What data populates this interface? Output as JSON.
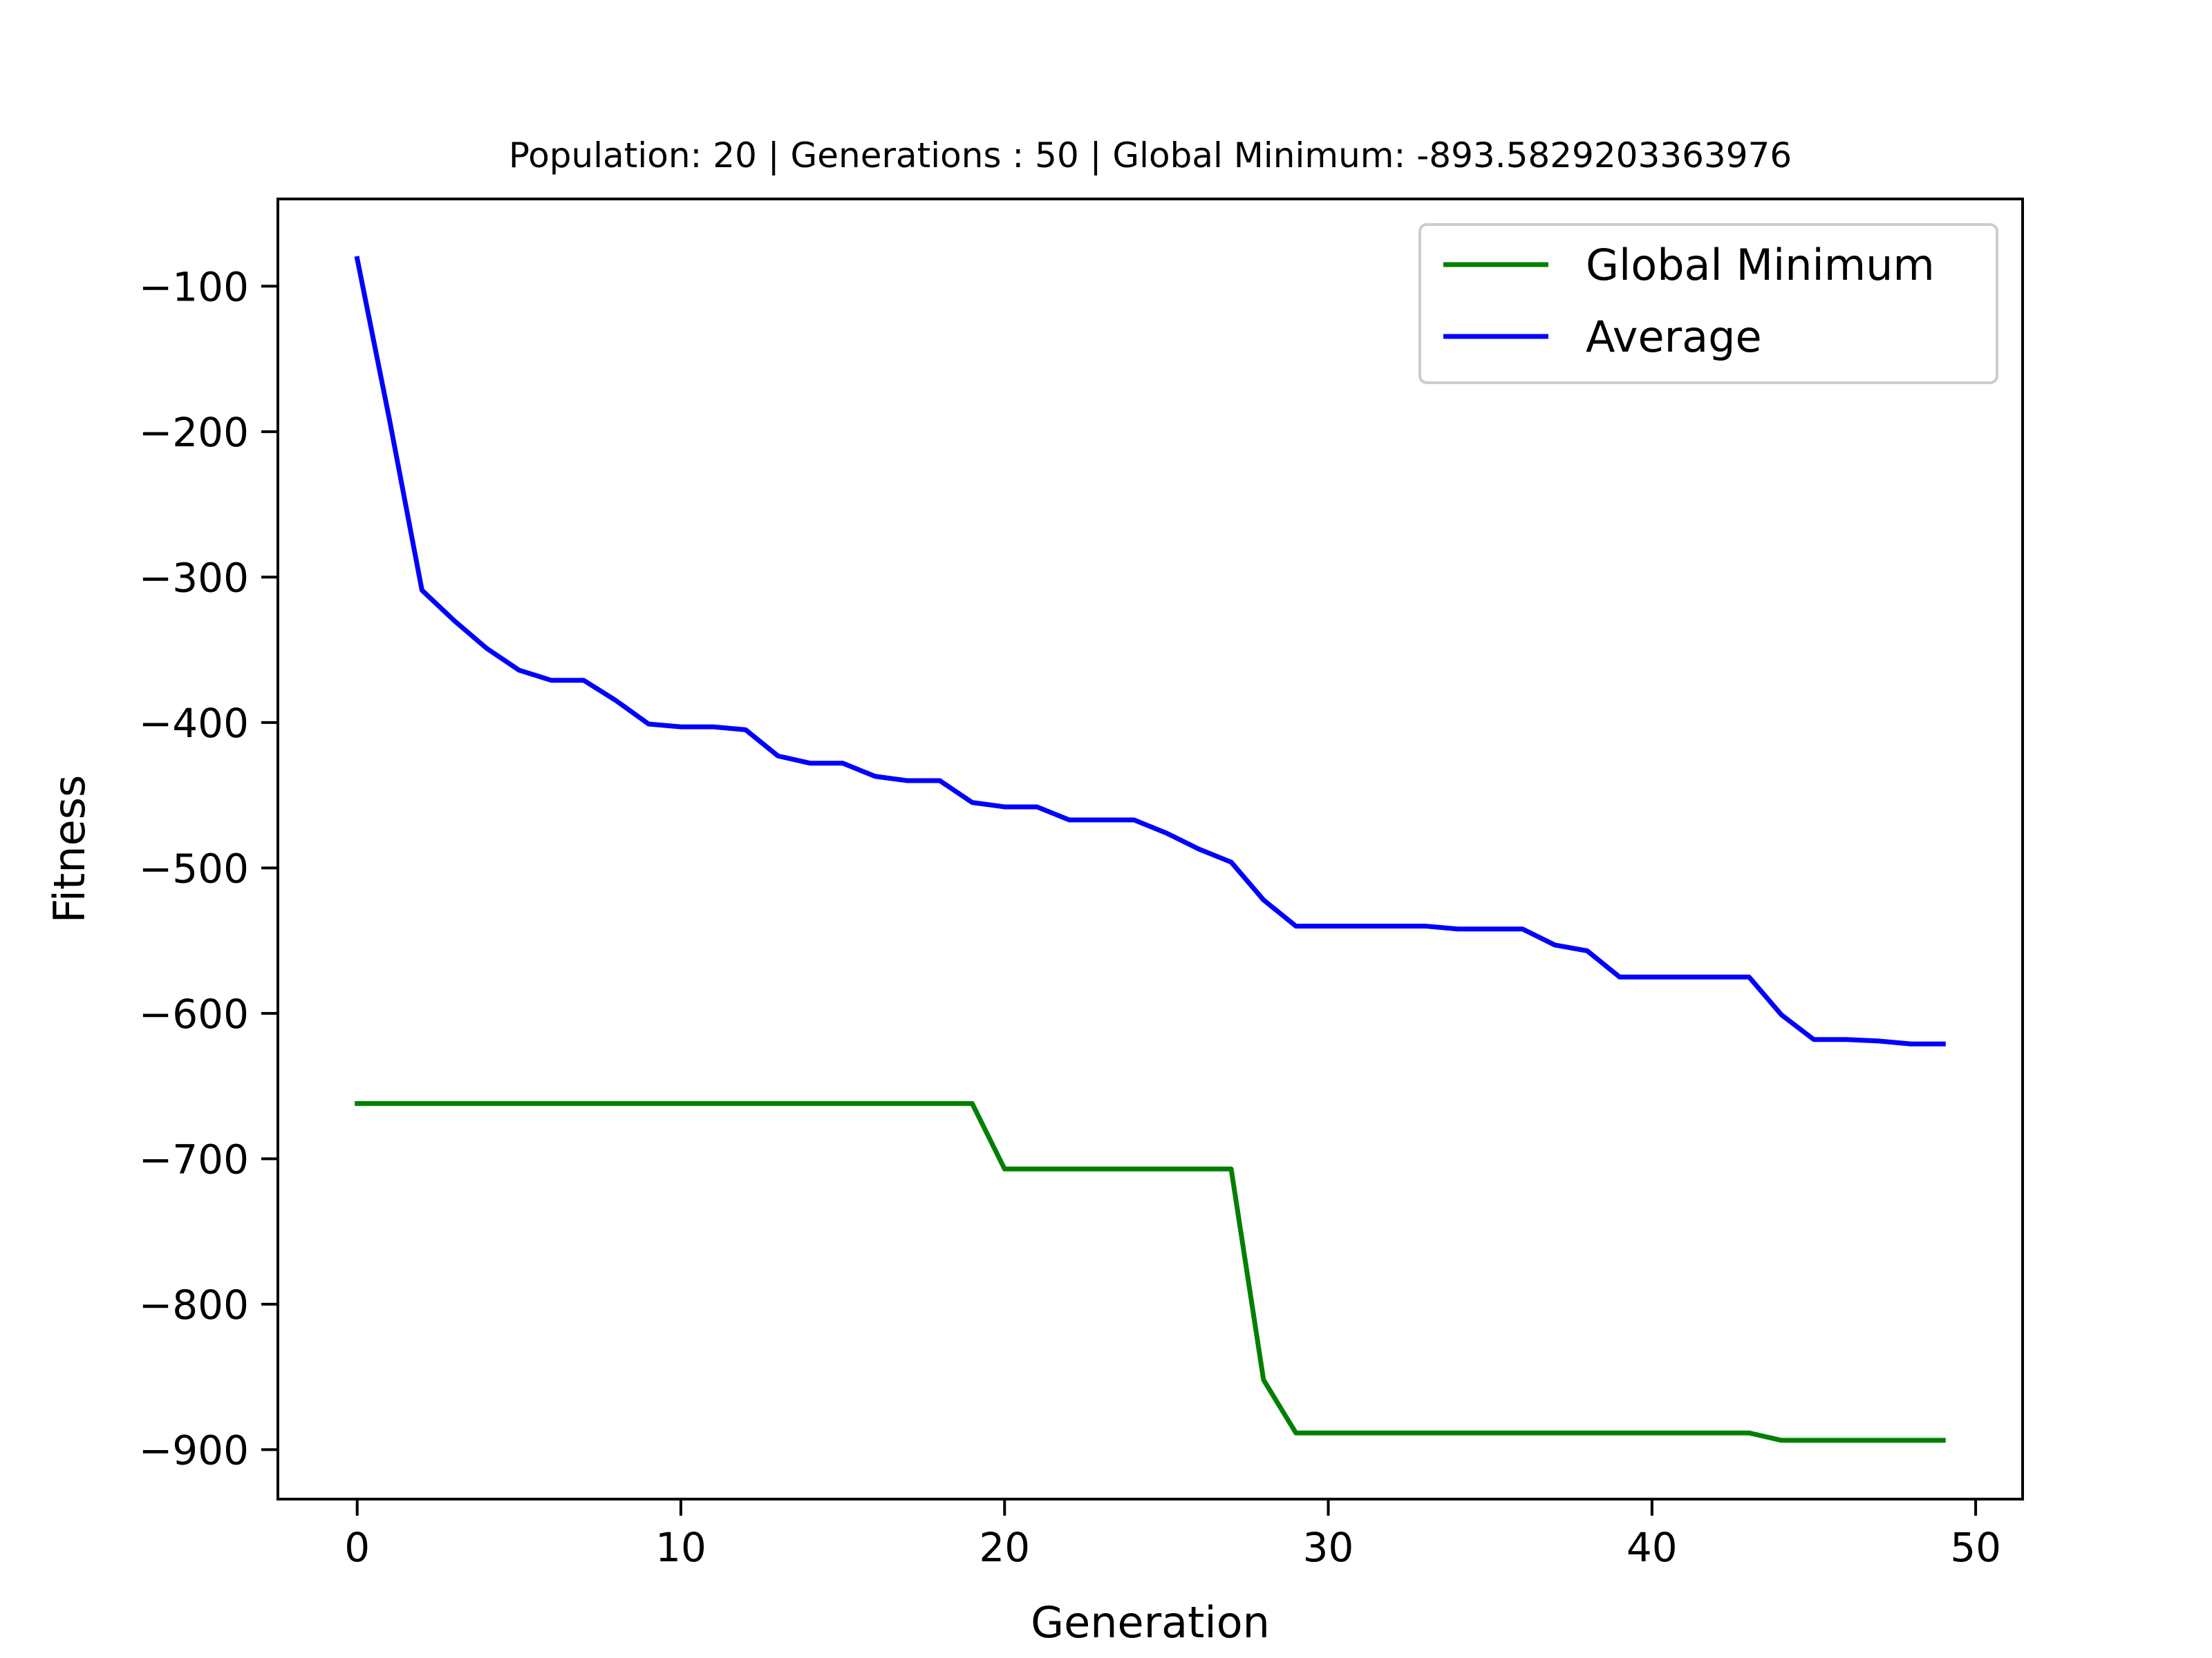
{
  "chart_data": {
    "type": "line",
    "title": "Population: 20 | Generations : 50 | Global Minimum: -893.5829203363976",
    "xlabel": "Generation",
    "ylabel": "Fitness",
    "xlim": [
      -2.45,
      51.45
    ],
    "ylim": [
      -934,
      -40
    ],
    "xticks": [
      0,
      10,
      20,
      30,
      40,
      50
    ],
    "yticks": [
      -100,
      -200,
      -300,
      -400,
      -500,
      -600,
      -700,
      -800,
      -900
    ],
    "xtick_labels": [
      "0",
      "10",
      "20",
      "30",
      "40",
      "50"
    ],
    "ytick_labels": [
      "−100",
      "−200",
      "−300",
      "−400",
      "−500",
      "−600",
      "−700",
      "−800",
      "−900"
    ],
    "grid": false,
    "legend_position": "top-right",
    "x": [
      0,
      1,
      2,
      3,
      4,
      5,
      6,
      7,
      8,
      9,
      10,
      11,
      12,
      13,
      14,
      15,
      16,
      17,
      18,
      19,
      20,
      21,
      22,
      23,
      24,
      25,
      26,
      27,
      28,
      29,
      30,
      31,
      32,
      33,
      34,
      35,
      36,
      37,
      38,
      39,
      40,
      41,
      42,
      43,
      44,
      45,
      46,
      47,
      48,
      49
    ],
    "series": [
      {
        "name": "Global Minimum",
        "color": "#008000",
        "values": [
          -662,
          -662,
          -662,
          -662,
          -662,
          -662,
          -662,
          -662,
          -662,
          -662,
          -662,
          -662,
          -662,
          -662,
          -662,
          -662,
          -662,
          -662,
          -662,
          -662,
          -707,
          -707,
          -707,
          -707,
          -707,
          -707,
          -707,
          -707,
          -852,
          -888.5,
          -888.5,
          -888.5,
          -888.5,
          -888.5,
          -888.5,
          -888.5,
          -888.5,
          -888.5,
          -888.5,
          -888.5,
          -888.5,
          -888.5,
          -888.5,
          -888.5,
          -893.58,
          -893.58,
          -893.58,
          -893.58,
          -893.58,
          -893.58
        ]
      },
      {
        "name": "Average",
        "color": "#0000ff",
        "values": [
          -81,
          -192,
          -309,
          -330,
          -349,
          -364,
          -371,
          -371,
          -385,
          -401,
          -403,
          -403,
          -405,
          -423,
          -428,
          -428,
          -437,
          -440,
          -440,
          -455,
          -458,
          -458,
          -467,
          -467,
          -467,
          -476,
          -487,
          -496,
          -522,
          -540,
          -540,
          -540,
          -540,
          -540,
          -542,
          -542,
          -542,
          -553,
          -557,
          -575,
          -575,
          -575,
          -575,
          -575,
          -601,
          -618,
          -618,
          -619,
          -621,
          -621
        ]
      }
    ]
  }
}
